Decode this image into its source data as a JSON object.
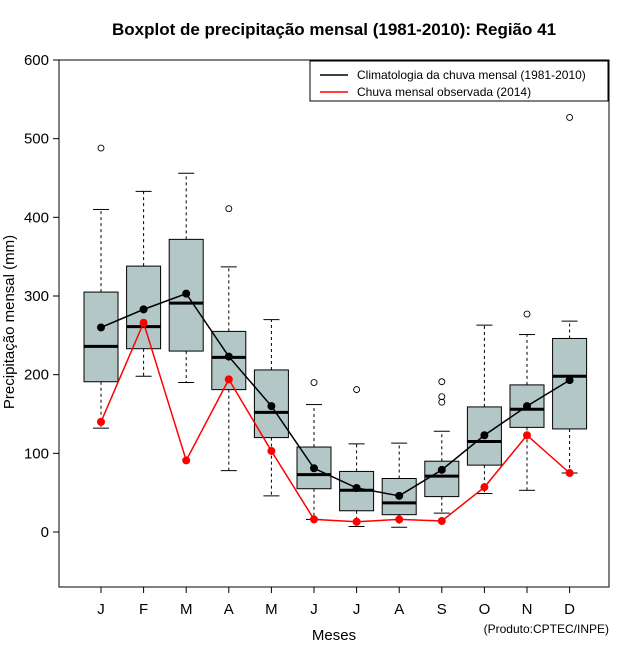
{
  "chart_data": {
    "type": "boxplot",
    "title": "Boxplot de precipitação mensal (1981-2010): Região 41",
    "xlabel": "Meses",
    "ylabel": "Precipitação mensal (mm)",
    "ylim": [
      -70,
      600
    ],
    "yticks": [
      0,
      100,
      200,
      300,
      400,
      500,
      600
    ],
    "categories": [
      "J",
      "F",
      "M",
      "A",
      "M",
      "J",
      "J",
      "A",
      "S",
      "O",
      "N",
      "D"
    ],
    "boxes": [
      {
        "whisker_low": 132,
        "q1": 191,
        "median": 236,
        "q3": 305,
        "whisker_high": 410,
        "outliers": [
          488
        ]
      },
      {
        "whisker_low": 198,
        "q1": 233,
        "median": 261,
        "q3": 338,
        "whisker_high": 433,
        "outliers": []
      },
      {
        "whisker_low": 190,
        "q1": 230,
        "median": 291,
        "q3": 372,
        "whisker_high": 456,
        "outliers": []
      },
      {
        "whisker_low": 78,
        "q1": 181,
        "median": 222,
        "q3": 255,
        "whisker_high": 337,
        "outliers": [
          411
        ]
      },
      {
        "whisker_low": 46,
        "q1": 120,
        "median": 152,
        "q3": 206,
        "whisker_high": 270,
        "outliers": []
      },
      {
        "whisker_low": 16,
        "q1": 55,
        "median": 73,
        "q3": 108,
        "whisker_high": 162,
        "outliers": [
          190
        ]
      },
      {
        "whisker_low": 7,
        "q1": 27,
        "median": 53,
        "q3": 77,
        "whisker_high": 112,
        "outliers": [
          181
        ]
      },
      {
        "whisker_low": 6,
        "q1": 22,
        "median": 37,
        "q3": 68,
        "whisker_high": 113,
        "outliers": []
      },
      {
        "whisker_low": 24,
        "q1": 45,
        "median": 71,
        "q3": 90,
        "whisker_high": 128,
        "outliers": [
          165,
          172,
          191
        ]
      },
      {
        "whisker_low": 49,
        "q1": 85,
        "median": 115,
        "q3": 159,
        "whisker_high": 263,
        "outliers": []
      },
      {
        "whisker_low": 53,
        "q1": 133,
        "median": 156,
        "q3": 187,
        "whisker_high": 251,
        "outliers": [
          277
        ]
      },
      {
        "whisker_low": 75,
        "q1": 131,
        "median": 198,
        "q3": 246,
        "whisker_high": 268,
        "outliers": [
          527
        ]
      }
    ],
    "series": [
      {
        "name": "Climatologia da chuva mensal (1981-2010)",
        "color": "#000000",
        "values": [
          260,
          283,
          303,
          223,
          160,
          81,
          56,
          46,
          79,
          123,
          160,
          193
        ]
      },
      {
        "name": "Chuva mensal observada (2014)",
        "color": "#ff0000",
        "values": [
          140,
          266,
          91,
          194,
          103,
          16,
          13,
          16,
          14,
          57,
          123,
          75
        ]
      }
    ],
    "legend_position": "top-right",
    "box_fill": "#b3c7c6",
    "credit": "(Produto:CPTEC/INPE)"
  }
}
